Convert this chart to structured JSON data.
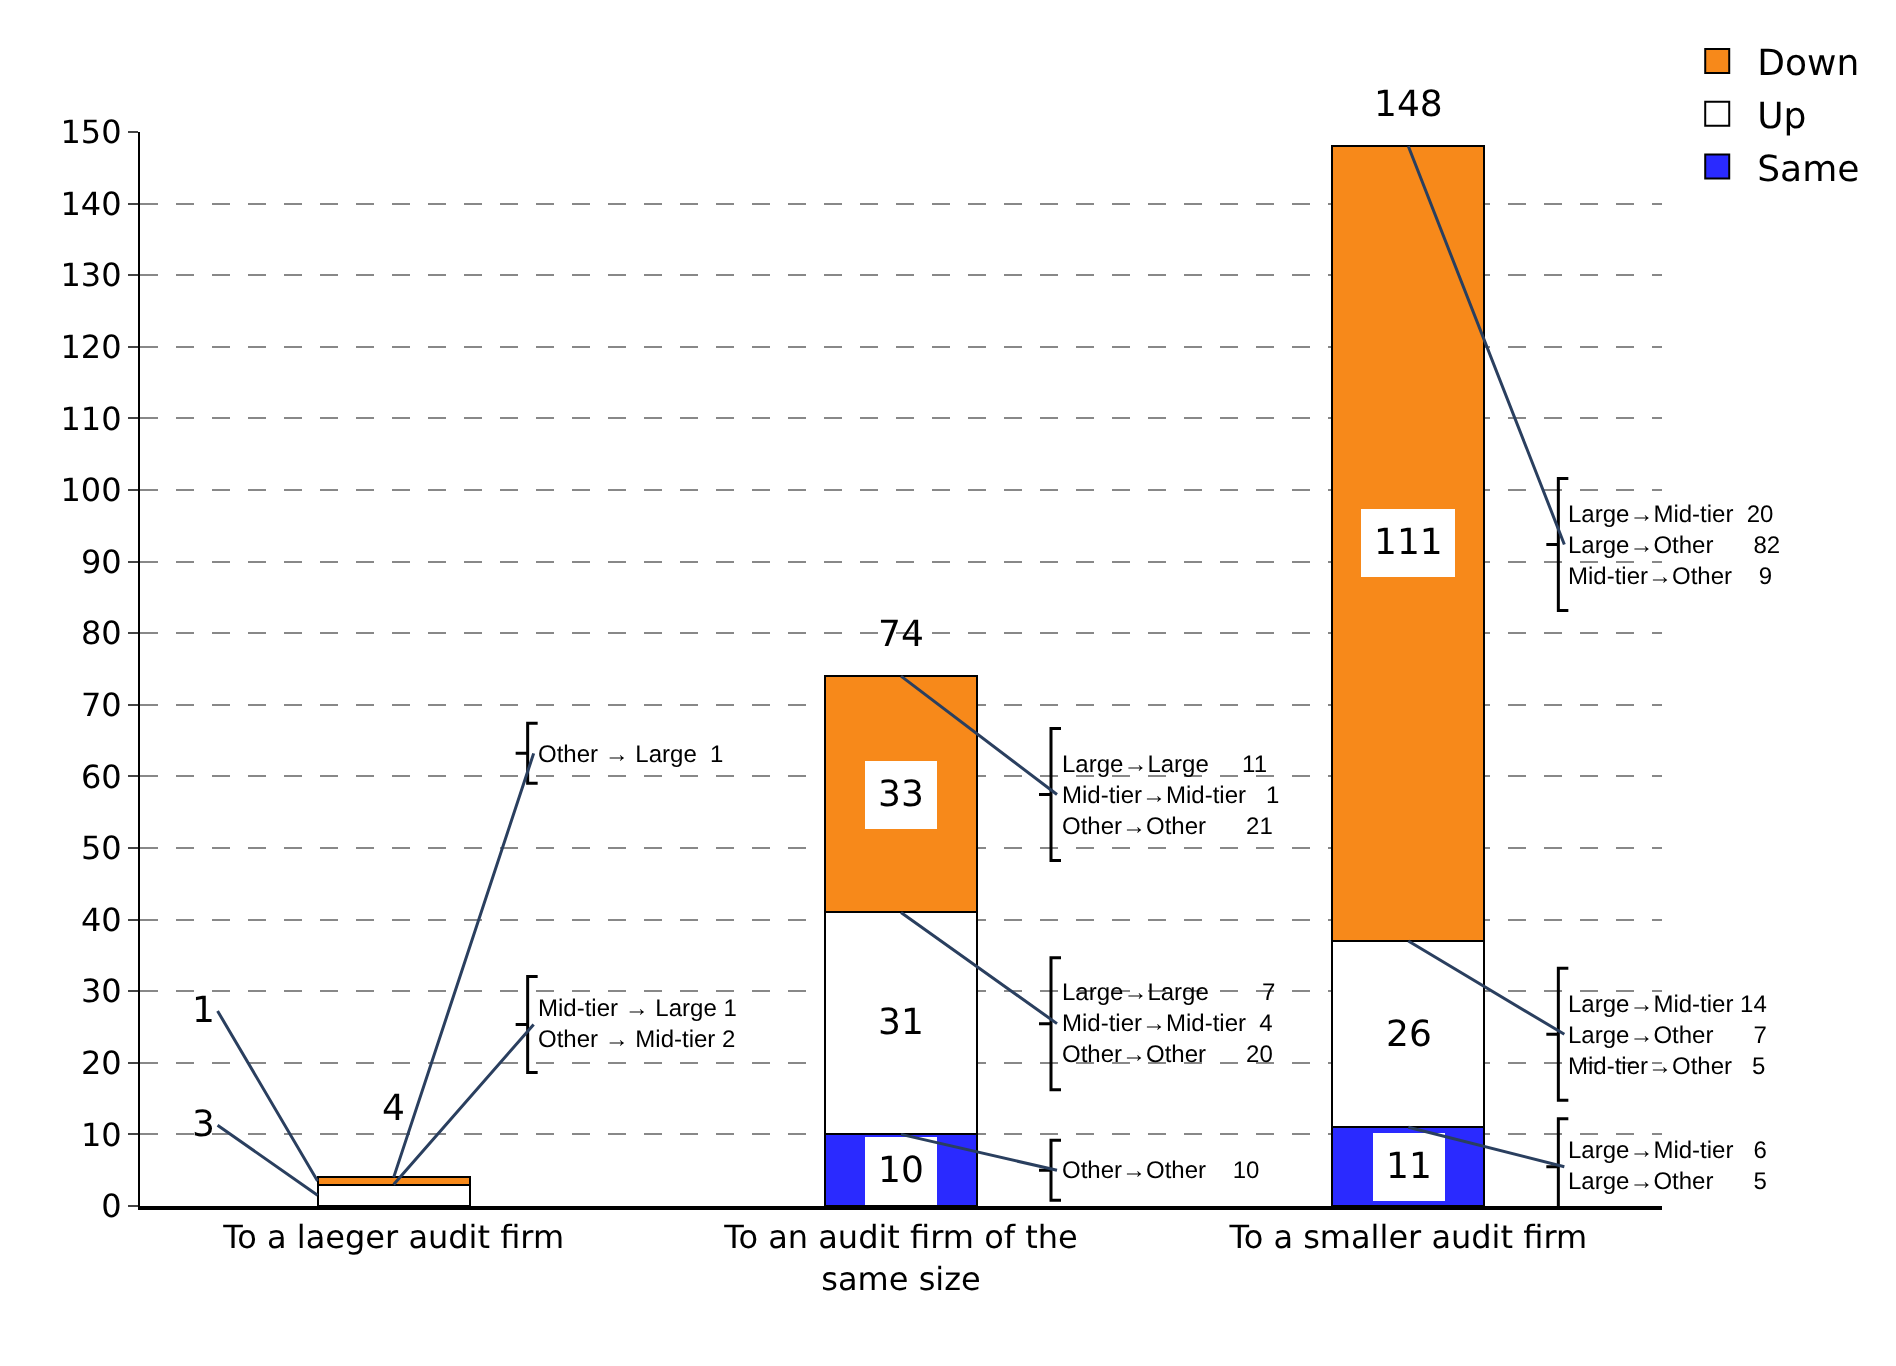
{
  "chart_data": {
    "type": "bar",
    "stacked": true,
    "categories": [
      "To a laeger audit firm",
      "To an audit firm of the\nsame size",
      "To a smaller audit firm"
    ],
    "series": [
      {
        "name": "Same",
        "color": "#2a2aff",
        "values": [
          0,
          10,
          11
        ],
        "value_labels": [
          null,
          "10",
          "11"
        ]
      },
      {
        "name": "Up",
        "color": "#ffffff",
        "values": [
          3,
          31,
          26
        ],
        "value_labels": [
          "3",
          "31",
          "26"
        ]
      },
      {
        "name": "Down",
        "color": "#f7891a",
        "values": [
          1,
          33,
          111
        ],
        "value_labels": [
          "1",
          "33",
          "111"
        ]
      }
    ],
    "totals": [
      "4",
      "74",
      "148"
    ],
    "ylim": [
      0,
      150
    ],
    "yticks": [
      0,
      10,
      20,
      30,
      40,
      50,
      60,
      70,
      80,
      90,
      100,
      110,
      120,
      130,
      140,
      150
    ],
    "grid": "y",
    "legend": "top right",
    "annotations": [
      {
        "text": "Other → Large  1",
        "x": "To a laeger audit firm",
        "y": 4
      },
      {
        "text": "Mid-tier → Large 1\nOther → Mid-tier 2",
        "x": "To a laeger audit firm",
        "y": 3
      },
      {
        "text": "Large→Large     11\nMid-tier→Mid-tier   1\nOther→Other      21",
        "x": "To an audit firm of the\nsame size",
        "y": 74
      },
      {
        "text": "Large→Large        7\nMid-tier→Mid-tier  4\nOther→Other      20",
        "x": "To an audit firm of the\nsame size",
        "y": 41
      },
      {
        "text": "Other→Other    10",
        "x": "To an audit firm of the\nsame size",
        "y": 10
      },
      {
        "text": "Large→Mid-tier  20\nLarge→Other      82\nMid-tier→Other    9",
        "x": "To a smaller audit firm",
        "y": 148
      },
      {
        "text": "Large→Mid-tier 14\nLarge→Other      7\nMid-tier→Other   5",
        "x": "To a smaller audit firm",
        "y": 37
      },
      {
        "text": "Large→Mid-tier   6\nLarge→Other      5",
        "x": "To a smaller audit firm",
        "y": 11
      }
    ]
  }
}
